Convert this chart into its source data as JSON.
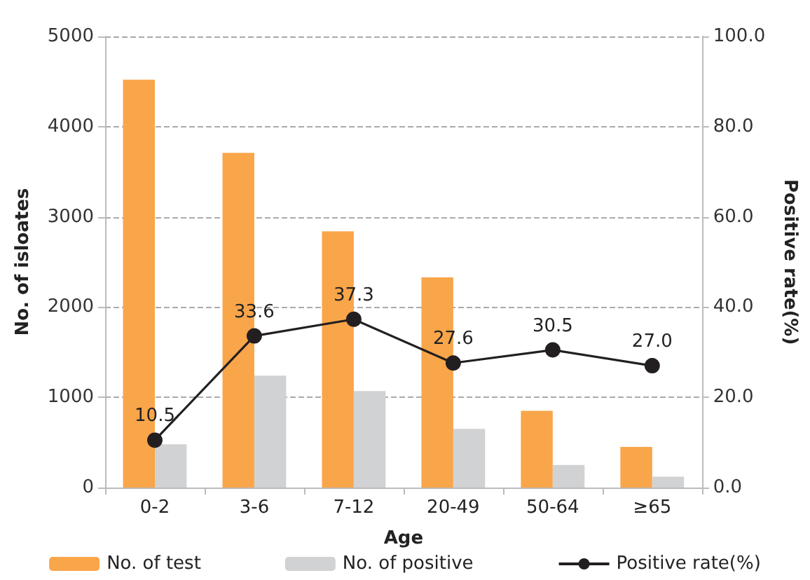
{
  "chart_data": {
    "type": "bar",
    "xlabel": "Age",
    "ylabel": "No. of isloates",
    "y2label": "Positive rate(%)",
    "categories": [
      "0-2",
      "3-6",
      "7-12",
      "20-49",
      "50-64",
      "≥65"
    ],
    "series": [
      {
        "name": "No. of test",
        "color": "#f9a54a",
        "values": [
          4520,
          3710,
          2840,
          2330,
          850,
          450
        ]
      },
      {
        "name": "No. of positive",
        "color": "#d1d2d4",
        "values": [
          480,
          1240,
          1070,
          650,
          250,
          120
        ]
      },
      {
        "name": "Positive rate(%)",
        "type": "line",
        "axis": "y2",
        "color": "#231f20",
        "marker": "circle",
        "value_labels": [
          "10.5",
          "33.6",
          "37.3",
          "27.6",
          "30.5",
          "27.0"
        ],
        "values": [
          10.5,
          33.6,
          37.3,
          27.6,
          30.5,
          27.0
        ]
      }
    ],
    "ylim": [
      0,
      5000
    ],
    "yticks": [
      0,
      1000,
      2000,
      3000,
      4000,
      5000
    ],
    "y2lim": [
      0,
      100
    ],
    "y2ticks": [
      {
        "value": 0,
        "label": "0.0"
      },
      {
        "value": 20,
        "label": "20.0"
      },
      {
        "value": 40,
        "label": "40.0"
      },
      {
        "value": 60,
        "label": "60.0"
      },
      {
        "value": 80,
        "label": "80.0"
      },
      {
        "value": 100,
        "label": "100.0"
      }
    ],
    "grid": "y",
    "legend": "bottom"
  }
}
